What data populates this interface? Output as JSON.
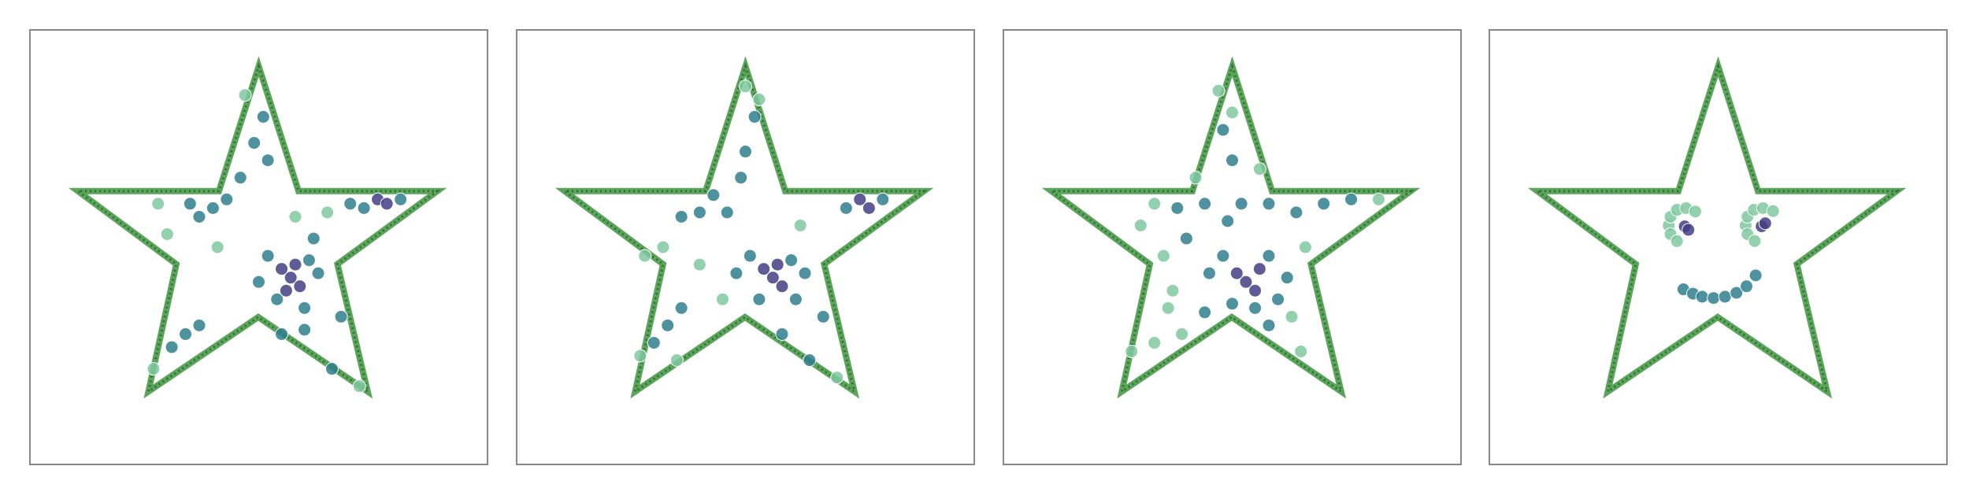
{
  "chart_data": [
    {
      "type": "scatter",
      "xlim": [
        0,
        100
      ],
      "ylim": [
        0,
        100
      ],
      "series": [
        {
          "color": "#7fc8a0",
          "x": [
            30,
            28,
            41,
            65,
            58,
            47,
            72,
            27
          ],
          "values": [
            53,
            60,
            50,
            58,
            57,
            85,
            18,
            22
          ]
        },
        {
          "color": "#2f7f8e",
          "x": [
            52,
            61,
            54,
            60,
            63,
            50,
            73,
            70,
            81,
            40,
            37,
            43,
            35,
            51,
            49,
            52,
            46,
            62,
            34,
            31,
            37,
            55,
            60,
            66,
            68
          ],
          "values": [
            48,
            47,
            38,
            36,
            44,
            42,
            59,
            60,
            61,
            59,
            57,
            61,
            60,
            80,
            74,
            70,
            66,
            52,
            30,
            27,
            32,
            30,
            31,
            22,
            34
          ]
        },
        {
          "color": "#433e85",
          "x": [
            57,
            59,
            55,
            58,
            76,
            78,
            56
          ],
          "values": [
            43,
            41,
            45,
            46,
            61,
            60,
            40
          ]
        }
      ]
    },
    {
      "type": "scatter",
      "xlim": [
        0,
        100
      ],
      "ylim": [
        0,
        100
      ],
      "series": [
        {
          "color": "#7fc8a0",
          "x": [
            32,
            28,
            40,
            45,
            50,
            53,
            70,
            27,
            35,
            62
          ],
          "values": [
            50,
            48,
            46,
            38,
            87,
            84,
            20,
            25,
            24,
            55
          ]
        },
        {
          "color": "#2f7f8e",
          "x": [
            51,
            60,
            53,
            61,
            63,
            48,
            72,
            80,
            40,
            36,
            43,
            50,
            49,
            52,
            46,
            33,
            30,
            36,
            58,
            64,
            67
          ],
          "values": [
            48,
            47,
            38,
            38,
            44,
            44,
            59,
            61,
            58,
            57,
            62,
            72,
            66,
            80,
            58,
            32,
            28,
            36,
            30,
            24,
            34
          ]
        },
        {
          "color": "#433e85",
          "x": [
            56,
            58,
            54,
            57,
            75,
            77
          ],
          "values": [
            43,
            41,
            45,
            46,
            61,
            59
          ]
        }
      ]
    },
    {
      "type": "scatter",
      "xlim": [
        0,
        100
      ],
      "ylim": [
        0,
        100
      ],
      "series": [
        {
          "color": "#7fc8a0",
          "x": [
            33,
            30,
            35,
            37,
            39,
            33,
            28,
            47,
            50,
            82,
            66,
            63,
            65,
            42,
            56,
            36
          ],
          "values": [
            60,
            55,
            48,
            40,
            30,
            28,
            26,
            86,
            81,
            61,
            50,
            34,
            26,
            66,
            68,
            36
          ]
        },
        {
          "color": "#2f7f8e",
          "x": [
            48,
            58,
            50,
            60,
            62,
            45,
            49,
            52,
            44,
            58,
            64,
            70,
            76,
            38,
            40,
            50,
            48,
            55,
            44,
            58
          ],
          "values": [
            48,
            48,
            37,
            38,
            43,
            44,
            56,
            60,
            60,
            60,
            58,
            60,
            61,
            59,
            52,
            70,
            77,
            36,
            35,
            32
          ]
        },
        {
          "color": "#433e85",
          "x": [
            53,
            55,
            51,
            56
          ],
          "values": [
            42,
            40,
            44,
            45
          ]
        }
      ]
    },
    {
      "type": "scatter",
      "xlim": [
        0,
        100
      ],
      "ylim": [
        0,
        100
      ],
      "series": [
        {
          "color": "#7fc8a0",
          "x": [
            39.2,
            39.6,
            41,
            43,
            45,
            39.6,
            41,
            56,
            56.4,
            57.8,
            59.8,
            62,
            56.4,
            58
          ],
          "values": [
            55,
            57,
            58.6,
            59,
            58.2,
            53,
            51.4,
            55,
            57,
            58.6,
            59,
            58.3,
            53,
            51.4
          ]
        },
        {
          "color": "#2f7f8e",
          "x": [
            42.4,
            44.5,
            46.5,
            49,
            51.5,
            54,
            56.2,
            58.2
          ],
          "values": [
            40.3,
            39.3,
            38.6,
            38.3,
            38.6,
            39.5,
            41,
            43.5
          ]
        },
        {
          "color": "#433e85",
          "x": [
            42.7,
            43.5,
            59.5,
            60.3
          ],
          "values": [
            54.8,
            54,
            54.8,
            55.5
          ]
        }
      ]
    }
  ]
}
